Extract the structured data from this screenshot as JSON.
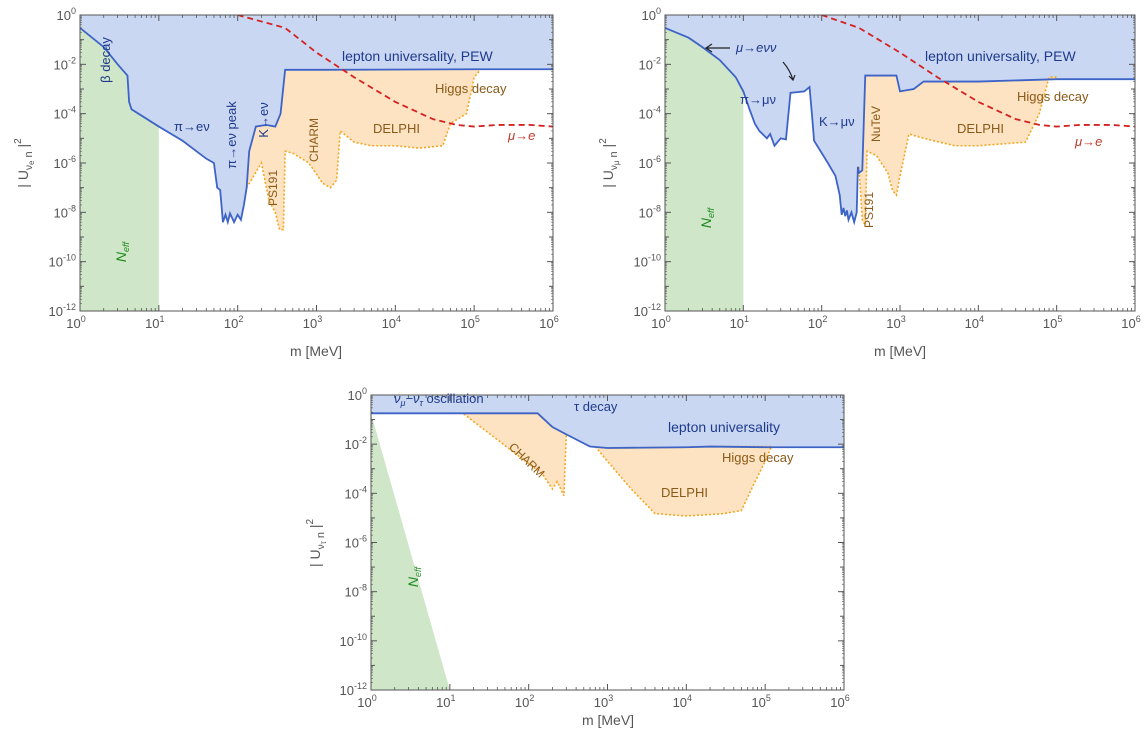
{
  "colors": {
    "excluded_fill": "#c9d7f3",
    "boundary_line": "#3d63c7",
    "orange_fill": "#fde3c2",
    "orange_line": "#f3a722",
    "orange_text": "#8a5a18",
    "green_fill": "#cfe7c8",
    "green_text": "#1e8a1e",
    "red_line": "#d42222",
    "red_text": "#c0392b",
    "blue_text": "#1f3a8c",
    "axis": "#555555"
  },
  "chart_data": [
    {
      "type": "area",
      "xlabel": "m [MeV]",
      "ylabel": "| U_{νe n} |²",
      "ylabel_main": "| U",
      "ylabel_sub": "ν",
      "ylabel_subsub": "e",
      "ylabel_n": " n",
      "ylabel_tail": " |",
      "ylabel_sup": "2",
      "x_log_range": [
        0,
        6
      ],
      "y_log_range": [
        -12,
        0
      ],
      "scale": "log-log",
      "x_ticks": [
        {
          "label": "10",
          "exp": "0"
        },
        {
          "label": "10",
          "exp": "1"
        },
        {
          "label": "10",
          "exp": "2"
        },
        {
          "label": "10",
          "exp": "3"
        },
        {
          "label": "10",
          "exp": "4"
        },
        {
          "label": "10",
          "exp": "5"
        },
        {
          "label": "10",
          "exp": "6"
        }
      ],
      "y_ticks": [
        {
          "label": "10",
          "exp": "-12"
        },
        {
          "label": "10",
          "exp": "-10"
        },
        {
          "label": "10",
          "exp": "-8"
        },
        {
          "label": "10",
          "exp": "-6"
        },
        {
          "label": "10",
          "exp": "-4"
        },
        {
          "label": "10",
          "exp": "-2"
        },
        {
          "label": "10",
          "exp": "0"
        }
      ],
      "neff_band": {
        "label": "N",
        "sub": "eff",
        "x_range": [
          1,
          10
        ]
      },
      "excluded_boundary": [
        [
          1,
          0.3
        ],
        [
          2,
          0.05
        ],
        [
          3,
          0.01
        ],
        [
          4,
          0.0035
        ],
        [
          4.2,
          0.0003
        ],
        [
          4.5,
          0.00015
        ],
        [
          10,
          3e-05
        ],
        [
          20,
          8e-06
        ],
        [
          40,
          1.5e-06
        ],
        [
          50,
          1e-06
        ],
        [
          55,
          1e-07
        ],
        [
          60,
          8e-08
        ],
        [
          65,
          4e-09
        ],
        [
          70,
          8e-09
        ],
        [
          75,
          4e-09
        ],
        [
          80,
          9e-09
        ],
        [
          90,
          4e-09
        ],
        [
          100,
          8e-09
        ],
        [
          110,
          5e-09
        ],
        [
          120,
          2e-08
        ],
        [
          130,
          1e-07
        ],
        [
          140,
          3e-06
        ],
        [
          170,
          3e-05
        ],
        [
          230,
          3.5e-05
        ],
        [
          300,
          3e-05
        ],
        [
          350,
          0.0001
        ],
        [
          400,
          0.006
        ],
        [
          1000,
          0.006
        ],
        [
          100000,
          0.0063
        ],
        [
          1000000,
          0.0063
        ]
      ],
      "orange_boundary": [
        [
          130,
          1e-07
        ],
        [
          200,
          1e-06
        ],
        [
          250,
          3e-08
        ],
        [
          300,
          1e-08
        ],
        [
          340,
          2e-09
        ],
        [
          380,
          2e-09
        ],
        [
          400,
          3e-06
        ],
        [
          500,
          2.5e-06
        ],
        [
          800,
          1e-06
        ],
        [
          1200,
          1.5e-07
        ],
        [
          1500,
          1e-07
        ],
        [
          1800,
          2e-07
        ],
        [
          2000,
          2e-05
        ],
        [
          3000,
          7e-06
        ],
        [
          5000,
          5e-06
        ],
        [
          10000,
          5e-06
        ],
        [
          20000,
          4e-06
        ],
        [
          40000,
          5e-06
        ],
        [
          50000,
          4e-05
        ],
        [
          80000,
          0.0001
        ],
        [
          100000,
          0.003
        ],
        [
          120000,
          0.006
        ]
      ],
      "red_curve": [
        [
          100,
          1
        ],
        [
          400,
          0.3
        ],
        [
          1000,
          0.03
        ],
        [
          3000,
          0.003
        ],
        [
          10000,
          0.0003
        ],
        [
          30000,
          6e-05
        ],
        [
          60000,
          3.5e-05
        ],
        [
          100000,
          3e-05
        ],
        [
          200000,
          3.5e-05
        ],
        [
          500000,
          3.5e-05
        ],
        [
          1000000,
          3e-05
        ]
      ],
      "labels": {
        "beta": "β decay",
        "pe": "π→eν",
        "pe_peak": "π→eν peak",
        "ke": "K→eν",
        "ps191": "PS191",
        "charm": "CHARM",
        "delphi": "DELPHI",
        "higgs": "Higgs decay",
        "lepton": "lepton universality, PEW",
        "mue": "μ→e"
      }
    },
    {
      "type": "area",
      "xlabel": "m [MeV]",
      "ylabel": "| U_{νμ n} |²",
      "ylabel_main": "| U",
      "ylabel_sub": "ν",
      "ylabel_subsub": "μ",
      "ylabel_n": " n",
      "ylabel_tail": " |",
      "ylabel_sup": "2",
      "x_log_range": [
        0,
        6
      ],
      "y_log_range": [
        -12,
        0
      ],
      "scale": "log-log",
      "x_ticks": [
        {
          "label": "10",
          "exp": "0"
        },
        {
          "label": "10",
          "exp": "1"
        },
        {
          "label": "10",
          "exp": "2"
        },
        {
          "label": "10",
          "exp": "3"
        },
        {
          "label": "10",
          "exp": "4"
        },
        {
          "label": "10",
          "exp": "5"
        },
        {
          "label": "10",
          "exp": "6"
        }
      ],
      "y_ticks": [
        {
          "label": "10",
          "exp": "-12"
        },
        {
          "label": "10",
          "exp": "-10"
        },
        {
          "label": "10",
          "exp": "-8"
        },
        {
          "label": "10",
          "exp": "-6"
        },
        {
          "label": "10",
          "exp": "-4"
        },
        {
          "label": "10",
          "exp": "-2"
        },
        {
          "label": "10",
          "exp": "0"
        }
      ],
      "neff_band": {
        "label": "N",
        "sub": "eff",
        "x_range": [
          1,
          10
        ]
      },
      "excluded_boundary": [
        [
          1,
          0.3
        ],
        [
          2,
          0.12
        ],
        [
          3,
          0.05
        ],
        [
          5,
          0.015
        ],
        [
          8,
          0.003
        ],
        [
          10,
          0.0008
        ],
        [
          12,
          0.00015
        ],
        [
          14,
          4e-05
        ],
        [
          16,
          2e-05
        ],
        [
          20,
          1e-05
        ],
        [
          22,
          1.5e-05
        ],
        [
          25,
          5e-06
        ],
        [
          30,
          1e-05
        ],
        [
          35,
          9e-06
        ],
        [
          40,
          0.0007
        ],
        [
          60,
          0.0008
        ],
        [
          70,
          0.0012
        ],
        [
          75,
          0.0001
        ],
        [
          80,
          8e-06
        ],
        [
          120,
          1e-06
        ],
        [
          150,
          3e-07
        ],
        [
          170,
          5e-08
        ],
        [
          180,
          8e-09
        ],
        [
          190,
          1.5e-08
        ],
        [
          200,
          7e-09
        ],
        [
          210,
          1.2e-08
        ],
        [
          220,
          5e-09
        ],
        [
          240,
          1e-08
        ],
        [
          260,
          4e-09
        ],
        [
          280,
          1e-08
        ],
        [
          290,
          7e-07
        ],
        [
          300,
          4e-07
        ],
        [
          330,
          5e-07
        ],
        [
          360,
          0.0035
        ],
        [
          600,
          0.0035
        ],
        [
          900,
          0.0035
        ],
        [
          1000,
          0.0008
        ],
        [
          1500,
          0.001
        ],
        [
          2000,
          0.002
        ],
        [
          10000,
          0.002
        ],
        [
          100000,
          0.0025
        ],
        [
          1000000,
          0.0025
        ]
      ],
      "orange_boundary": [
        [
          300,
          7e-07
        ],
        [
          330,
          5e-09
        ],
        [
          360,
          3e-09
        ],
        [
          380,
          3e-06
        ],
        [
          500,
          2e-06
        ],
        [
          700,
          4e-07
        ],
        [
          800,
          8e-08
        ],
        [
          900,
          5e-08
        ],
        [
          1000,
          3e-07
        ],
        [
          1300,
          1.5e-05
        ],
        [
          2000,
          1e-05
        ],
        [
          5000,
          5e-06
        ],
        [
          10000,
          5e-06
        ],
        [
          40000,
          7e-06
        ],
        [
          60000,
          0.0001
        ],
        [
          80000,
          0.003
        ],
        [
          100000,
          0.003
        ]
      ],
      "red_curve": [
        [
          100,
          1
        ],
        [
          300,
          0.3
        ],
        [
          1000,
          0.03
        ],
        [
          3000,
          0.003
        ],
        [
          10000,
          0.0003
        ],
        [
          30000,
          6e-05
        ],
        [
          60000,
          3.5e-05
        ],
        [
          100000,
          3e-05
        ],
        [
          200000,
          3.5e-05
        ],
        [
          500000,
          3.5e-05
        ],
        [
          1000000,
          3e-05
        ]
      ],
      "labels": {
        "muevv": "μ→eνν",
        "pmu": "π→μν",
        "kmu": "K→μν",
        "ps191": "PS191",
        "nutev": "NuTeV",
        "delphi": "DELPHI",
        "higgs": "Higgs decay",
        "lepton": "lepton universality, PEW",
        "mue": "μ→e"
      }
    },
    {
      "type": "area",
      "xlabel": "m [MeV]",
      "ylabel": "| U_{ντ n} |²",
      "ylabel_main": "| U",
      "ylabel_sub": "ν",
      "ylabel_subsub": "τ",
      "ylabel_n": " n",
      "ylabel_tail": " |",
      "ylabel_sup": "2",
      "x_log_range": [
        0,
        6
      ],
      "y_log_range": [
        -12,
        0
      ],
      "scale": "log-log",
      "x_ticks": [
        {
          "label": "10",
          "exp": "0"
        },
        {
          "label": "10",
          "exp": "1"
        },
        {
          "label": "10",
          "exp": "2"
        },
        {
          "label": "10",
          "exp": "3"
        },
        {
          "label": "10",
          "exp": "4"
        },
        {
          "label": "10",
          "exp": "5"
        },
        {
          "label": "10",
          "exp": "6"
        }
      ],
      "y_ticks": [
        {
          "label": "10",
          "exp": "-12"
        },
        {
          "label": "10",
          "exp": "-10"
        },
        {
          "label": "10",
          "exp": "-8"
        },
        {
          "label": "10",
          "exp": "-6"
        },
        {
          "label": "10",
          "exp": "-4"
        },
        {
          "label": "10",
          "exp": "-2"
        },
        {
          "label": "10",
          "exp": "0"
        }
      ],
      "neff_band": {
        "label": "N",
        "sub": "eff",
        "x_range": [
          1,
          10
        ]
      },
      "excluded_boundary": [
        [
          1,
          0.18
        ],
        [
          100,
          0.18
        ],
        [
          130,
          0.18
        ],
        [
          200,
          0.05
        ],
        [
          300,
          0.025
        ],
        [
          600,
          0.008
        ],
        [
          1000,
          0.007
        ],
        [
          10000,
          0.0075
        ],
        [
          20000,
          0.008
        ],
        [
          100000,
          0.0075
        ],
        [
          1000000,
          0.0075
        ]
      ],
      "orange_regions": [
        [
          [
            15,
            0.17
          ],
          [
            100,
            0.0016
          ],
          [
            150,
            0.0006
          ],
          [
            200,
            0.00015
          ],
          [
            230,
            0.0003
          ],
          [
            280,
            8e-05
          ],
          [
            300,
            0.025
          ],
          [
            200,
            0.05
          ],
          [
            130,
            0.18
          ],
          [
            100,
            0.18
          ],
          [
            15,
            0.18
          ]
        ],
        [
          [
            700,
            0.008
          ],
          [
            1000,
            0.002
          ],
          [
            2000,
            0.00015
          ],
          [
            4000,
            1.5e-05
          ],
          [
            10000,
            1.2e-05
          ],
          [
            30000,
            1.5e-05
          ],
          [
            50000,
            2e-05
          ],
          [
            70000,
            0.0002
          ],
          [
            100000,
            0.002
          ],
          [
            120000,
            0.008
          ],
          [
            20000,
            0.008
          ],
          [
            10000,
            0.0075
          ],
          [
            1000,
            0.007
          ]
        ]
      ],
      "labels": {
        "osc": "ν",
        "osc_sub1": "μ",
        "osc_mid": "−ν",
        "osc_sub2": "τ",
        "osc_tail": " oscillation",
        "tau": "τ decay",
        "lepton": "lepton universality",
        "charm": "CHARM",
        "delphi": "DELPHI",
        "higgs": "Higgs decay"
      }
    }
  ]
}
